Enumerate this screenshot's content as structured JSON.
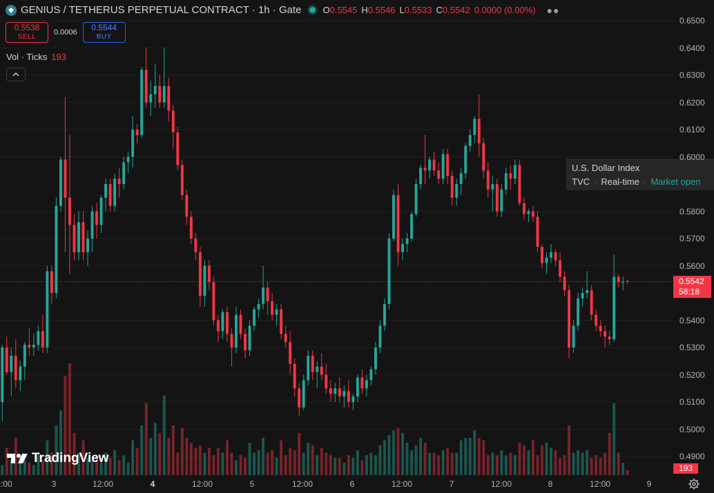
{
  "header": {
    "symbol_title": "GENIUS / TETHERUS PERPETUAL CONTRACT · 1h · Gate",
    "ohlc": {
      "o_label": "O",
      "o_value": "0.5545",
      "h_label": "H",
      "h_value": "0.5546",
      "l_label": "L",
      "l_value": "0.5533",
      "c_label": "C",
      "c_value": "0.5542",
      "change": "0.0000 (0.00%)"
    },
    "more_icon": "more-dots-icon"
  },
  "trade": {
    "sell_price": "0.5538",
    "sell_label": "SELL",
    "spread": "0.0006",
    "buy_price": "0.5544",
    "buy_label": "BUY"
  },
  "volume_legend": {
    "label": "Vol · Ticks",
    "value": "193"
  },
  "tooltip": {
    "title": "U.S. Dollar Index",
    "source": "TVC",
    "feed": "Real-time",
    "status": "Market open"
  },
  "logo_text": "TradingView",
  "price_axis": [
    "0.6500",
    "0.6400",
    "0.6300",
    "0.6200",
    "0.6100",
    "0.6000",
    "0.5800",
    "0.5700",
    "0.5600",
    "0.5400",
    "0.5300",
    "0.5200",
    "0.5100",
    "0.5000",
    "0.4900"
  ],
  "last_price_tag": {
    "price": "0.5542",
    "countdown": "58:18"
  },
  "volume_tag": "193",
  "time_axis": [
    {
      "label": "2:00",
      "bold": false
    },
    {
      "label": "3",
      "bold": false
    },
    {
      "label": "12:00",
      "bold": false
    },
    {
      "label": "4",
      "bold": true
    },
    {
      "label": "12:00",
      "bold": false
    },
    {
      "label": "5",
      "bold": false
    },
    {
      "label": "12:00",
      "bold": false
    },
    {
      "label": "6",
      "bold": false
    },
    {
      "label": "12:00",
      "bold": false
    },
    {
      "label": "7",
      "bold": false
    },
    {
      "label": "12:00",
      "bold": false
    },
    {
      "label": "8",
      "bold": false
    },
    {
      "label": "12:00",
      "bold": false
    },
    {
      "label": "9",
      "bold": false
    }
  ],
  "colors": {
    "up": "#26a69a",
    "down": "#f23645",
    "background": "#141414",
    "grid": "#1f1f1f"
  },
  "chart_data": {
    "type": "candlestick",
    "interval": "1h",
    "y_range": [
      0.488,
      0.652
    ],
    "last_price": 0.5542,
    "candles": [
      [
        0.51,
        0.531,
        0.503,
        0.53
      ],
      [
        0.53,
        0.534,
        0.52,
        0.521
      ],
      [
        0.521,
        0.53,
        0.512,
        0.527
      ],
      [
        0.527,
        0.533,
        0.515,
        0.518
      ],
      [
        0.518,
        0.525,
        0.514,
        0.523
      ],
      [
        0.523,
        0.532,
        0.518,
        0.531
      ],
      [
        0.531,
        0.537,
        0.527,
        0.53
      ],
      [
        0.53,
        0.535,
        0.527,
        0.531
      ],
      [
        0.531,
        0.538,
        0.529,
        0.536
      ],
      [
        0.536,
        0.542,
        0.528,
        0.53
      ],
      [
        0.53,
        0.56,
        0.528,
        0.558
      ],
      [
        0.558,
        0.56,
        0.546,
        0.55
      ],
      [
        0.55,
        0.585,
        0.548,
        0.582
      ],
      [
        0.582,
        0.6,
        0.58,
        0.599
      ],
      [
        0.599,
        0.622,
        0.565,
        0.585
      ],
      [
        0.585,
        0.608,
        0.557,
        0.575
      ],
      [
        0.575,
        0.579,
        0.562,
        0.565
      ],
      [
        0.565,
        0.58,
        0.562,
        0.576
      ],
      [
        0.576,
        0.58,
        0.562,
        0.565
      ],
      [
        0.565,
        0.573,
        0.56,
        0.57
      ],
      [
        0.57,
        0.582,
        0.565,
        0.58
      ],
      [
        0.58,
        0.583,
        0.57,
        0.575
      ],
      [
        0.575,
        0.586,
        0.572,
        0.585
      ],
      [
        0.585,
        0.592,
        0.58,
        0.59
      ],
      [
        0.59,
        0.592,
        0.58,
        0.582
      ],
      [
        0.582,
        0.594,
        0.58,
        0.592
      ],
      [
        0.592,
        0.596,
        0.585,
        0.59
      ],
      [
        0.59,
        0.6,
        0.588,
        0.598
      ],
      [
        0.598,
        0.602,
        0.594,
        0.6
      ],
      [
        0.6,
        0.615,
        0.596,
        0.61
      ],
      [
        0.61,
        0.612,
        0.605,
        0.608
      ],
      [
        0.608,
        0.633,
        0.607,
        0.632
      ],
      [
        0.632,
        0.64,
        0.618,
        0.62
      ],
      [
        0.62,
        0.628,
        0.615,
        0.623
      ],
      [
        0.623,
        0.634,
        0.618,
        0.626
      ],
      [
        0.626,
        0.63,
        0.618,
        0.62
      ],
      [
        0.62,
        0.64,
        0.618,
        0.626
      ],
      [
        0.626,
        0.629,
        0.613,
        0.617
      ],
      [
        0.617,
        0.619,
        0.603,
        0.609
      ],
      [
        0.609,
        0.611,
        0.595,
        0.597
      ],
      [
        0.597,
        0.599,
        0.584,
        0.586
      ],
      [
        0.586,
        0.588,
        0.575,
        0.578
      ],
      [
        0.578,
        0.58,
        0.568,
        0.57
      ],
      [
        0.57,
        0.572,
        0.562,
        0.565
      ],
      [
        0.565,
        0.567,
        0.545,
        0.549
      ],
      [
        0.549,
        0.562,
        0.545,
        0.56
      ],
      [
        0.56,
        0.562,
        0.551,
        0.554
      ],
      [
        0.554,
        0.556,
        0.538,
        0.54
      ],
      [
        0.54,
        0.542,
        0.532,
        0.536
      ],
      [
        0.536,
        0.544,
        0.533,
        0.543
      ],
      [
        0.543,
        0.545,
        0.532,
        0.535
      ],
      [
        0.535,
        0.537,
        0.523,
        0.53
      ],
      [
        0.53,
        0.545,
        0.528,
        0.542
      ],
      [
        0.542,
        0.544,
        0.533,
        0.535
      ],
      [
        0.535,
        0.537,
        0.526,
        0.529
      ],
      [
        0.529,
        0.54,
        0.527,
        0.538
      ],
      [
        0.538,
        0.545,
        0.536,
        0.544
      ],
      [
        0.544,
        0.548,
        0.541,
        0.546
      ],
      [
        0.546,
        0.56,
        0.544,
        0.552
      ],
      [
        0.552,
        0.554,
        0.542,
        0.547
      ],
      [
        0.547,
        0.55,
        0.54,
        0.542
      ],
      [
        0.542,
        0.546,
        0.538,
        0.544
      ],
      [
        0.544,
        0.546,
        0.533,
        0.535
      ],
      [
        0.535,
        0.538,
        0.53,
        0.532
      ],
      [
        0.532,
        0.536,
        0.52,
        0.524
      ],
      [
        0.524,
        0.526,
        0.512,
        0.515
      ],
      [
        0.515,
        0.517,
        0.505,
        0.508
      ],
      [
        0.508,
        0.52,
        0.507,
        0.518
      ],
      [
        0.518,
        0.529,
        0.516,
        0.527
      ],
      [
        0.527,
        0.529,
        0.518,
        0.521
      ],
      [
        0.521,
        0.525,
        0.515,
        0.523
      ],
      [
        0.523,
        0.528,
        0.518,
        0.52
      ],
      [
        0.52,
        0.524,
        0.513,
        0.515
      ],
      [
        0.515,
        0.518,
        0.51,
        0.513
      ],
      [
        0.513,
        0.517,
        0.51,
        0.515
      ],
      [
        0.515,
        0.519,
        0.51,
        0.512
      ],
      [
        0.512,
        0.516,
        0.508,
        0.514
      ],
      [
        0.514,
        0.518,
        0.508,
        0.51
      ],
      [
        0.51,
        0.513,
        0.507,
        0.512
      ],
      [
        0.512,
        0.52,
        0.51,
        0.519
      ],
      [
        0.519,
        0.522,
        0.513,
        0.515
      ],
      [
        0.515,
        0.52,
        0.512,
        0.518
      ],
      [
        0.518,
        0.523,
        0.516,
        0.522
      ],
      [
        0.522,
        0.532,
        0.52,
        0.53
      ],
      [
        0.53,
        0.54,
        0.528,
        0.538
      ],
      [
        0.538,
        0.548,
        0.536,
        0.546
      ],
      [
        0.546,
        0.572,
        0.544,
        0.57
      ],
      [
        0.57,
        0.588,
        0.569,
        0.586
      ],
      [
        0.586,
        0.59,
        0.56,
        0.565
      ],
      [
        0.565,
        0.57,
        0.562,
        0.568
      ],
      [
        0.568,
        0.572,
        0.565,
        0.57
      ],
      [
        0.57,
        0.58,
        0.569,
        0.579
      ],
      [
        0.579,
        0.592,
        0.578,
        0.59
      ],
      [
        0.59,
        0.597,
        0.588,
        0.596
      ],
      [
        0.596,
        0.608,
        0.59,
        0.595
      ],
      [
        0.595,
        0.6,
        0.592,
        0.599
      ],
      [
        0.599,
        0.602,
        0.593,
        0.595
      ],
      [
        0.595,
        0.598,
        0.59,
        0.592
      ],
      [
        0.592,
        0.603,
        0.59,
        0.601
      ],
      [
        0.601,
        0.603,
        0.59,
        0.593
      ],
      [
        0.593,
        0.595,
        0.582,
        0.585
      ],
      [
        0.585,
        0.592,
        0.582,
        0.59
      ],
      [
        0.59,
        0.596,
        0.586,
        0.594
      ],
      [
        0.594,
        0.605,
        0.592,
        0.604
      ],
      [
        0.604,
        0.61,
        0.602,
        0.608
      ],
      [
        0.608,
        0.615,
        0.605,
        0.614
      ],
      [
        0.614,
        0.623,
        0.6,
        0.605
      ],
      [
        0.605,
        0.607,
        0.592,
        0.595
      ],
      [
        0.595,
        0.598,
        0.585,
        0.588
      ],
      [
        0.588,
        0.593,
        0.58,
        0.59
      ],
      [
        0.59,
        0.592,
        0.578,
        0.58
      ],
      [
        0.58,
        0.59,
        0.578,
        0.588
      ],
      [
        0.588,
        0.596,
        0.586,
        0.594
      ],
      [
        0.594,
        0.597,
        0.588,
        0.592
      ],
      [
        0.592,
        0.599,
        0.59,
        0.597
      ],
      [
        0.597,
        0.599,
        0.582,
        0.583
      ],
      [
        0.583,
        0.585,
        0.577,
        0.579
      ],
      [
        0.579,
        0.581,
        0.576,
        0.58
      ],
      [
        0.58,
        0.582,
        0.576,
        0.578
      ],
      [
        0.578,
        0.58,
        0.565,
        0.567
      ],
      [
        0.567,
        0.568,
        0.559,
        0.561
      ],
      [
        0.561,
        0.565,
        0.557,
        0.563
      ],
      [
        0.563,
        0.568,
        0.561,
        0.565
      ],
      [
        0.565,
        0.566,
        0.56,
        0.562
      ],
      [
        0.562,
        0.565,
        0.554,
        0.556
      ],
      [
        0.556,
        0.558,
        0.549,
        0.551
      ],
      [
        0.551,
        0.553,
        0.526,
        0.53
      ],
      [
        0.53,
        0.54,
        0.528,
        0.538
      ],
      [
        0.538,
        0.55,
        0.536,
        0.548
      ],
      [
        0.548,
        0.552,
        0.545,
        0.55
      ],
      [
        0.55,
        0.558,
        0.548,
        0.551
      ],
      [
        0.551,
        0.553,
        0.54,
        0.542
      ],
      [
        0.542,
        0.544,
        0.536,
        0.538
      ],
      [
        0.538,
        0.54,
        0.534,
        0.536
      ],
      [
        0.536,
        0.538,
        0.53,
        0.534
      ],
      [
        0.534,
        0.536,
        0.531,
        0.533
      ],
      [
        0.533,
        0.564,
        0.532,
        0.556
      ],
      [
        0.556,
        0.557,
        0.552,
        0.554
      ],
      [
        0.554,
        0.556,
        0.551,
        0.554
      ],
      [
        0.5545,
        0.5546,
        0.5533,
        0.5542
      ]
    ],
    "volume": [
      8,
      22,
      12,
      30,
      14,
      12,
      10,
      8,
      16,
      12,
      28,
      18,
      40,
      52,
      80,
      90,
      34,
      18,
      28,
      14,
      12,
      16,
      10,
      18,
      14,
      20,
      12,
      16,
      10,
      28,
      22,
      40,
      58,
      30,
      42,
      34,
      64,
      30,
      40,
      18,
      38,
      30,
      26,
      22,
      24,
      18,
      22,
      16,
      22,
      18,
      28,
      18,
      12,
      16,
      14,
      26,
      18,
      20,
      30,
      18,
      20,
      14,
      28,
      16,
      22,
      20,
      34,
      18,
      26,
      24,
      16,
      22,
      18,
      16,
      14,
      14,
      10,
      16,
      14,
      20,
      12,
      16,
      18,
      16,
      24,
      28,
      32,
      36,
      38,
      34,
      26,
      20,
      24,
      30,
      26,
      18,
      18,
      16,
      20,
      22,
      18,
      18,
      28,
      30,
      30,
      36,
      30,
      28,
      16,
      18,
      16,
      20,
      16,
      18,
      16,
      26,
      24,
      20,
      28,
      16,
      24,
      26,
      22,
      20,
      14,
      16,
      40,
      18,
      20,
      18,
      20,
      14,
      16,
      14,
      18,
      34,
      58,
      18,
      10,
      4
    ],
    "volume_max": 100
  }
}
